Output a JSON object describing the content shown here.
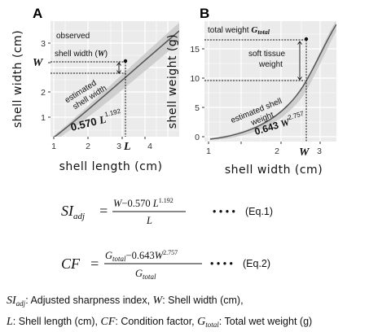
{
  "panel_a": {
    "letter": "A",
    "xlabel": "shell length (cm)",
    "ylabel": "shell width (cm)",
    "xticks": [
      "1",
      "2",
      "3",
      "4"
    ],
    "yticks": [
      "1",
      "2",
      "3"
    ],
    "x_axis_marker": "L",
    "y_axis_marker": "W",
    "observed_line1": "observed",
    "observed_line2": "shell width (",
    "observed_var": "W",
    "observed_close": ")",
    "curve_label_line1": "estimated",
    "curve_label_line2": "shell width",
    "formula_coef": "0.570 ",
    "formula_var": "L",
    "formula_exp": "1.192"
  },
  "panel_b": {
    "letter": "B",
    "xlabel": "shell width (cm)",
    "ylabel": "shell weight (g)",
    "xticks": [
      "1",
      "2",
      "3"
    ],
    "yticks": [
      "0",
      "5",
      "10",
      "15"
    ],
    "x_axis_marker": "W",
    "total_label": "total weight ",
    "total_var": "G",
    "total_sub": "total",
    "soft_line1": "soft tissue",
    "soft_line2": "weight",
    "curve_label_line1": "estimated shell",
    "curve_label_line2": "weight",
    "formula_coef": "0.643 ",
    "formula_var": "W",
    "formula_exp": "2.757"
  },
  "eq1": {
    "lhs": "SI",
    "lhs_sub": "adj",
    "equals": "=",
    "numerator_a": "W",
    "numerator_b": "−0.570 ",
    "numerator_c": "L",
    "numerator_exp": "1.192",
    "denominator": "L",
    "dots": "• • • •",
    "tag": "(Eq.1)"
  },
  "eq2": {
    "lhs": "CF",
    "equals": "=",
    "numerator_a": "G",
    "numerator_sub": "total",
    "numerator_b": "−0.643",
    "numerator_c": "W",
    "numerator_exp": "2.757",
    "denominator": "G",
    "denominator_sub": "total",
    "dots": "• • • •",
    "tag": "(Eq.2)"
  },
  "legend": {
    "line1_a_var": "SI",
    "line1_a_sub": "adj",
    "line1_a_text": ": Adjusted sharpness index, ",
    "line1_b_var": "W",
    "line1_b_text": ": Shell width (cm),",
    "line2_a_var": "L",
    "line2_a_text": ": Shell length (cm), ",
    "line2_b_var": "CF",
    "line2_b_text": ": Condition factor,  ",
    "line2_c_var": "G",
    "line2_c_sub": "total",
    "line2_c_text": ": Total wet weight (g)"
  },
  "colors": {
    "panel_bg": "#ebebeb",
    "grid": "#ffffff",
    "band": "#c9c9c9",
    "curve": "#555555"
  }
}
